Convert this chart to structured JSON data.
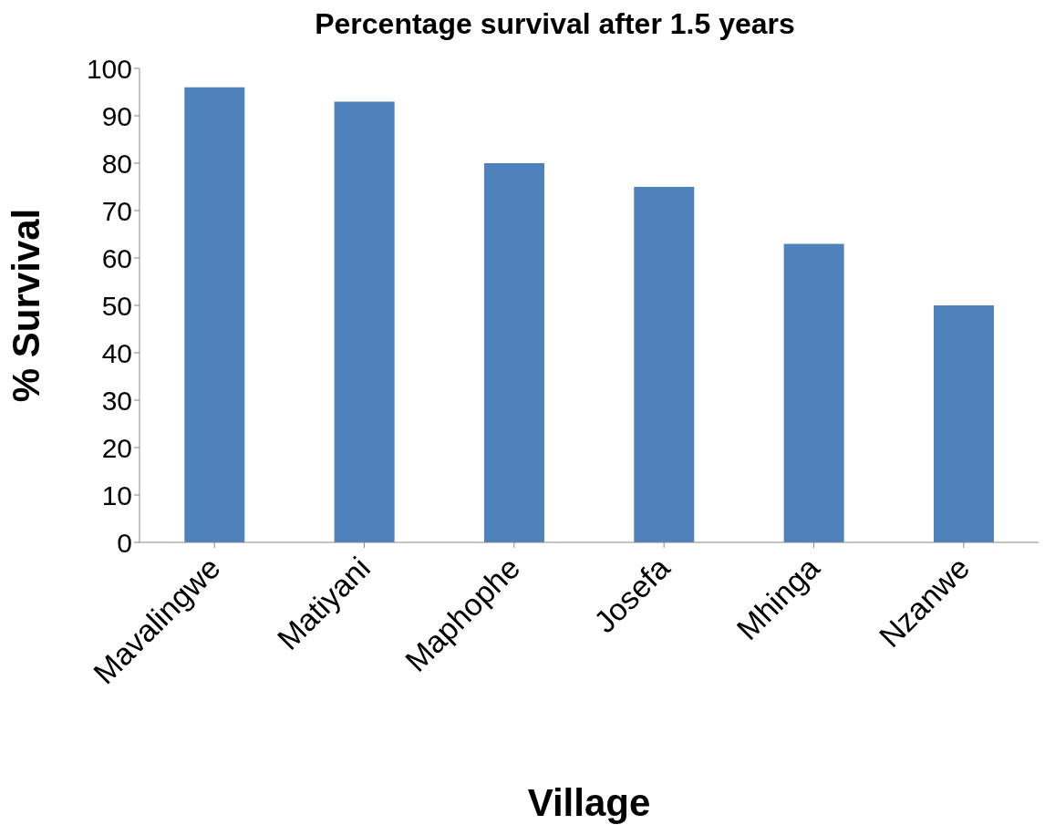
{
  "chart_data": {
    "type": "bar",
    "title": "Percentage survival after 1.5 years",
    "xlabel": "Village",
    "ylabel": "% Survival",
    "categories": [
      "Mavalingwe",
      "Matiyani",
      "Maphophe",
      "Josefa",
      "Mhinga",
      "Nzanwe"
    ],
    "values": [
      96,
      93,
      80,
      75,
      63,
      50
    ],
    "color": "#4f81bd",
    "ylim": [
      0,
      100
    ],
    "yticks": [
      0,
      10,
      20,
      30,
      40,
      50,
      60,
      70,
      80,
      90,
      100
    ],
    "grid": false,
    "legend": false
  }
}
